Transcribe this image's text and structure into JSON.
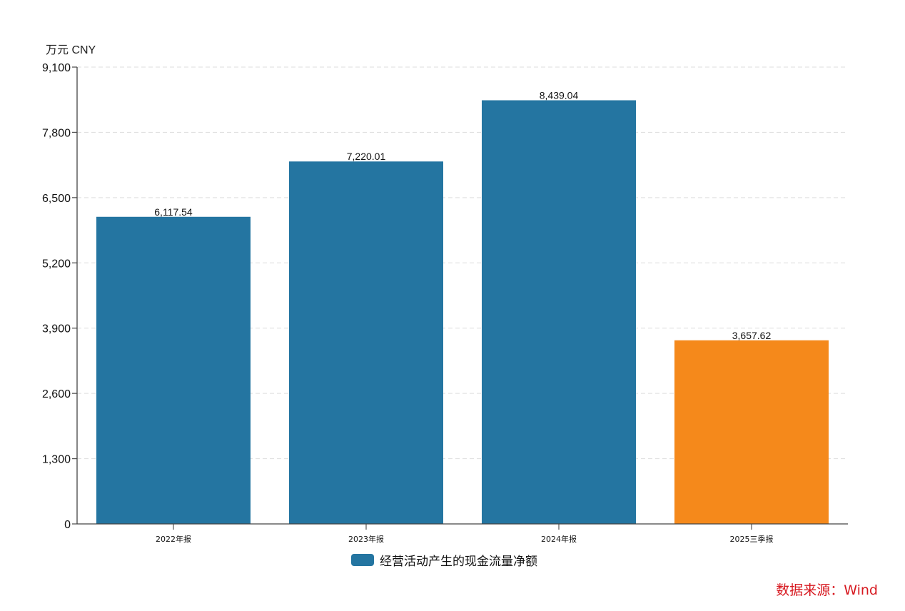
{
  "chart_data": {
    "type": "bar",
    "title": "",
    "unit_label": "万元  CNY",
    "xlabel": "",
    "ylabel": "万元 CNY",
    "ylim": [
      0,
      9100
    ],
    "yticks": [
      0,
      1300,
      2600,
      3900,
      5200,
      6500,
      7800,
      9100
    ],
    "ytick_labels": [
      "0",
      "1,300",
      "2,600",
      "3,900",
      "5,200",
      "6,500",
      "7,800",
      "9,100"
    ],
    "grid": true,
    "legend_position": "bottom",
    "categories": [
      "2022年报",
      "2023年报",
      "2024年报",
      "2025三季报"
    ],
    "series": [
      {
        "name": "经营活动产生的现金流量净额",
        "values": [
          6117.54,
          7220.01,
          8439.04,
          3657.62
        ],
        "value_labels": [
          "6,117.54",
          "7,220.01",
          "8,439.04",
          "3,657.62"
        ],
        "colors": [
          "#2475a1",
          "#2475a1",
          "#2475a1",
          "#f5891b"
        ]
      }
    ]
  },
  "legend": {
    "label": "经营活动产生的现金流量净额",
    "color": "#2475a1"
  },
  "source": "数据来源：Wind",
  "colors": {
    "primary": "#2475a1",
    "highlight": "#f5891b",
    "source": "#d71920"
  }
}
